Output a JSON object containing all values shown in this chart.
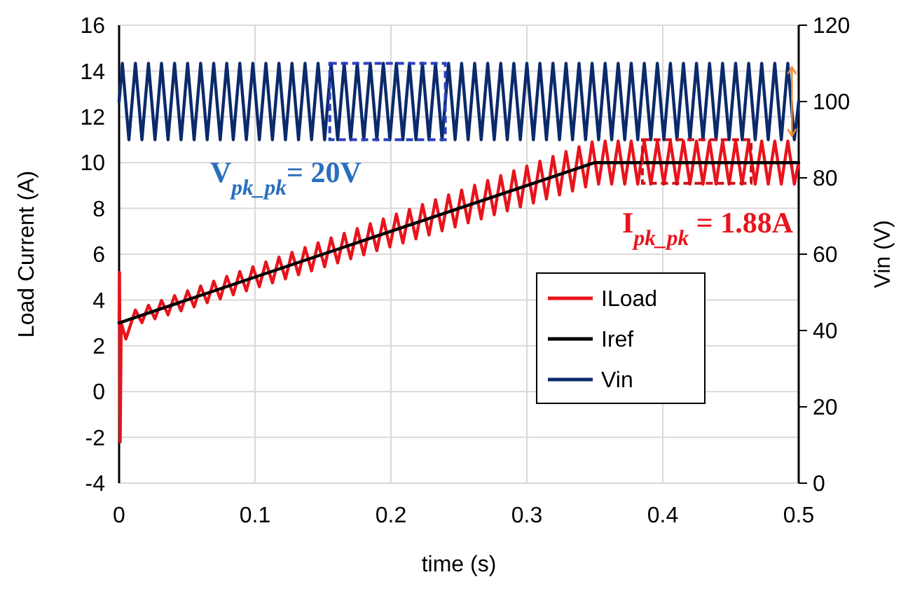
{
  "chart_data": {
    "type": "line",
    "xlabel": "time (s)",
    "ylabel": "Load Current (A)",
    "y2label": "Vin (V)",
    "xlim": [
      0,
      0.5
    ],
    "xticks": [
      0,
      0.1,
      0.2,
      0.3,
      0.4,
      0.5
    ],
    "ylim": [
      -4,
      16
    ],
    "yticks": [
      -4,
      -2,
      0,
      2,
      4,
      6,
      8,
      10,
      12,
      14,
      16
    ],
    "y2lim": [
      0,
      120
    ],
    "y2ticks": [
      0,
      20,
      40,
      60,
      80,
      100,
      120
    ],
    "grid": true,
    "legend": "right",
    "marker": "none",
    "line_style": "solid",
    "annotations": [
      "V$_{pk_pk}$= 20V",
      "I$_{pk_pk}$ = 1.88A"
    ],
    "series": [
      {
        "name": "ILoad",
        "color": "#e8141c",
        "x": [
          0,
          0.0003,
          0.0008,
          0.0015,
          0.005,
          0.012,
          0.0168,
          0.0216,
          0.0264,
          0.0312,
          0.036,
          0.0408,
          0.0456,
          0.0504,
          0.0552,
          0.06,
          0.0648,
          0.0696,
          0.0744,
          0.0792,
          0.084,
          0.0888,
          0.0936,
          0.0984,
          0.1032,
          0.108,
          0.1128,
          0.1176,
          0.1224,
          0.1272,
          0.132,
          0.1368,
          0.1416,
          0.1464,
          0.1512,
          0.156,
          0.1608,
          0.1656,
          0.1704,
          0.1752,
          0.18,
          0.1848,
          0.1896,
          0.1944,
          0.1992,
          0.204,
          0.2088,
          0.2136,
          0.2184,
          0.2232,
          0.228,
          0.2328,
          0.2376,
          0.2424,
          0.2472,
          0.252,
          0.2568,
          0.2616,
          0.2664,
          0.2712,
          0.276,
          0.2808,
          0.2856,
          0.2904,
          0.2952,
          0.3,
          0.3048,
          0.3096,
          0.3144,
          0.3192,
          0.324,
          0.3288,
          0.3336,
          0.3384,
          0.3432,
          0.348,
          0.3528,
          0.3576,
          0.3624,
          0.3672,
          0.372,
          0.3768,
          0.3816,
          0.3864,
          0.3912,
          0.396,
          0.4008,
          0.4056,
          0.4104,
          0.4152,
          0.42,
          0.4248,
          0.4296,
          0.4344,
          0.4392,
          0.444,
          0.4488,
          0.4536,
          0.4584,
          0.4632,
          0.468,
          0.4728,
          0.4776,
          0.4824,
          0.4872,
          0.492,
          0.4968,
          0.5
        ],
        "values": [
          3,
          5.2,
          -2.2,
          3,
          2.3,
          3.56,
          3.01,
          3.77,
          3.18,
          3.98,
          3.35,
          4.19,
          3.53,
          4.4,
          3.7,
          4.61,
          3.88,
          4.82,
          4.05,
          5.03,
          4.23,
          5.24,
          4.4,
          5.45,
          4.58,
          5.66,
          4.75,
          5.87,
          4.92,
          6.08,
          5.1,
          6.29,
          5.27,
          6.5,
          5.45,
          6.71,
          5.62,
          6.91,
          5.8,
          7.12,
          5.97,
          7.33,
          6.15,
          7.54,
          6.32,
          7.75,
          6.49,
          7.96,
          6.67,
          8.17,
          6.84,
          8.38,
          7.02,
          8.59,
          7.19,
          8.8,
          7.37,
          9.01,
          7.54,
          9.22,
          7.72,
          9.43,
          7.89,
          9.64,
          8.06,
          9.85,
          8.24,
          10.06,
          8.41,
          10.27,
          8.59,
          10.48,
          8.76,
          10.69,
          8.94,
          10.9,
          9.06,
          10.94,
          9.06,
          10.94,
          9.06,
          10.94,
          9.06,
          10.94,
          9.06,
          10.94,
          9.06,
          10.94,
          9.06,
          10.94,
          9.06,
          10.94,
          9.06,
          10.94,
          9.06,
          10.94,
          9.06,
          10.94,
          9.06,
          10.94,
          9.06,
          10.94,
          9.06,
          10.94,
          9.06,
          10.94,
          9.06,
          10
        ]
      },
      {
        "name": "Iref",
        "color": "#000000",
        "x": [
          0,
          0.35,
          0.5
        ],
        "values": [
          3,
          10,
          10
        ]
      },
      {
        "name": "Vin",
        "color": "#0b2a6b",
        "axis": "y2",
        "x": [
          0,
          0.0024,
          0.0072,
          0.012,
          0.0168,
          0.0216,
          0.0264,
          0.0312,
          0.036,
          0.0408,
          0.0456,
          0.0504,
          0.0552,
          0.06,
          0.0648,
          0.0696,
          0.0744,
          0.0792,
          0.084,
          0.0888,
          0.0936,
          0.0984,
          0.1032,
          0.108,
          0.1128,
          0.1176,
          0.1224,
          0.1272,
          0.132,
          0.1368,
          0.1416,
          0.1464,
          0.1512,
          0.156,
          0.1608,
          0.1656,
          0.1704,
          0.1752,
          0.18,
          0.1848,
          0.1896,
          0.1944,
          0.1992,
          0.204,
          0.2088,
          0.2136,
          0.2184,
          0.2232,
          0.228,
          0.2328,
          0.2376,
          0.2424,
          0.2472,
          0.252,
          0.2568,
          0.2616,
          0.2664,
          0.2712,
          0.276,
          0.2808,
          0.2856,
          0.2904,
          0.2952,
          0.3,
          0.3048,
          0.3096,
          0.3144,
          0.3192,
          0.324,
          0.3288,
          0.3336,
          0.3384,
          0.3432,
          0.348,
          0.3528,
          0.3576,
          0.3624,
          0.3672,
          0.372,
          0.3768,
          0.3816,
          0.3864,
          0.3912,
          0.396,
          0.4008,
          0.4056,
          0.4104,
          0.4152,
          0.42,
          0.4248,
          0.4296,
          0.4344,
          0.4392,
          0.444,
          0.4488,
          0.4536,
          0.4584,
          0.4632,
          0.468,
          0.4728,
          0.4776,
          0.4824,
          0.4872,
          0.492,
          0.4968,
          0.5
        ],
        "values": [
          100,
          110,
          90,
          110,
          90,
          110,
          90,
          110,
          90,
          110,
          90,
          110,
          90,
          110,
          90,
          110,
          90,
          110,
          90,
          110,
          90,
          110,
          90,
          110,
          90,
          110,
          90,
          110,
          90,
          110,
          90,
          110,
          90,
          110,
          90,
          110,
          90,
          110,
          90,
          110,
          90,
          110,
          90,
          110,
          90,
          110,
          90,
          110,
          90,
          110,
          90,
          110,
          90,
          110,
          90,
          110,
          90,
          110,
          90,
          110,
          90,
          110,
          90,
          110,
          90,
          110,
          90,
          110,
          90,
          110,
          90,
          110,
          90,
          110,
          90,
          110,
          90,
          110,
          90,
          110,
          90,
          110,
          90,
          110,
          90,
          110,
          90,
          110,
          90,
          110,
          90,
          110,
          90,
          110,
          90,
          110,
          90,
          110,
          90,
          110,
          90,
          110,
          90,
          110,
          90,
          100
        ]
      }
    ]
  }
}
